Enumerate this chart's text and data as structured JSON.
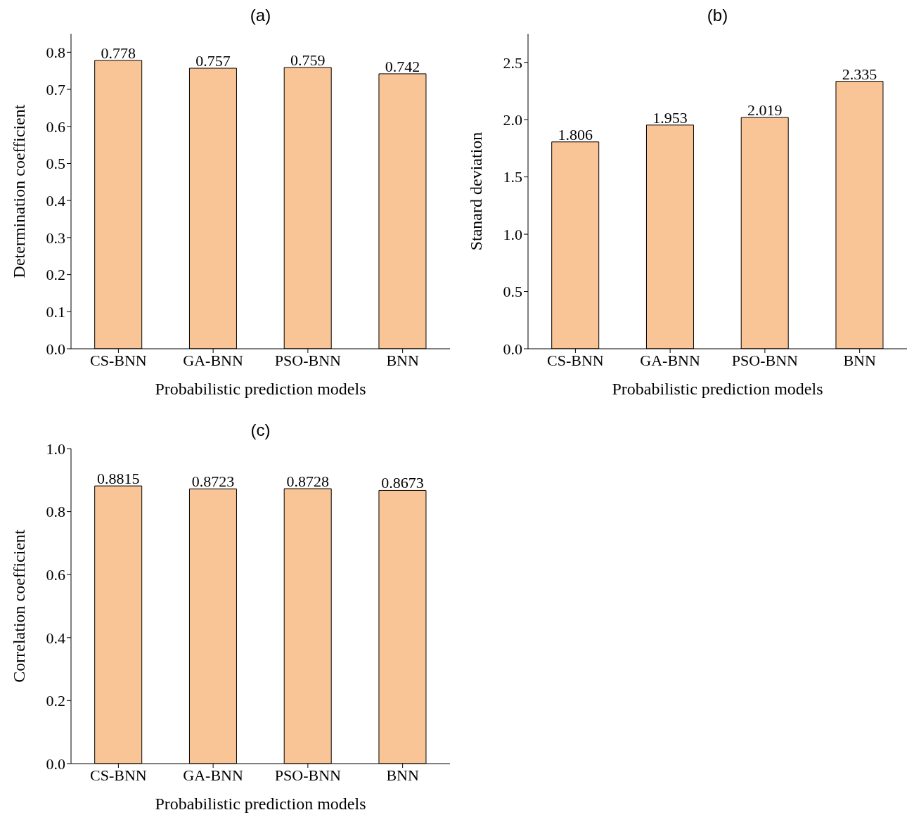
{
  "chart_data": [
    {
      "type": "bar",
      "title": "(a)",
      "xlabel": "Probabilistic prediction models",
      "ylabel": "Determination coefficient",
      "categories": [
        "CS-BNN",
        "GA-BNN",
        "PSO-BNN",
        "BNN"
      ],
      "values": [
        0.778,
        0.757,
        0.759,
        0.742
      ],
      "color": "#f9c597",
      "ylim": [
        0,
        0.85
      ],
      "yticks": [
        {
          "value": 0,
          "label": "0.0"
        },
        0.1,
        0.2,
        0.3,
        0.4,
        0.5,
        0.6,
        0.7,
        0.8
      ],
      "data_labels": true
    },
    {
      "type": "bar",
      "title": "(b)",
      "xlabel": "Probabilistic prediction models",
      "ylabel": "Stanard deviation",
      "categories": [
        "CS-BNN",
        "GA-BNN",
        "PSO-BNN",
        "BNN"
      ],
      "values": [
        1.806,
        1.953,
        2.019,
        2.335
      ],
      "color": "#f9c597",
      "ylim": [
        0,
        2.75
      ],
      "yticks": [
        {
          "value": 0,
          "label": "0.0"
        },
        0.5,
        {
          "value": 1,
          "label": "1.0"
        },
        1.5,
        {
          "value": 2,
          "label": "2.0"
        },
        2.5
      ],
      "data_labels": true
    },
    {
      "type": "bar",
      "title": "(c)",
      "xlabel": "Probabilistic prediction models",
      "ylabel": "Correlation coefficient",
      "categories": [
        "CS-BNN",
        "GA-BNN",
        "PSO-BNN",
        "BNN"
      ],
      "values": [
        0.8815,
        0.8723,
        0.8728,
        0.8673
      ],
      "color": "#f9c597",
      "ylim": [
        0,
        1
      ],
      "yticks": [
        {
          "value": 0,
          "label": "0.0"
        },
        0.2,
        0.4,
        0.6,
        0.8,
        {
          "value": 1,
          "label": "1.0"
        }
      ],
      "data_labels": true
    }
  ]
}
